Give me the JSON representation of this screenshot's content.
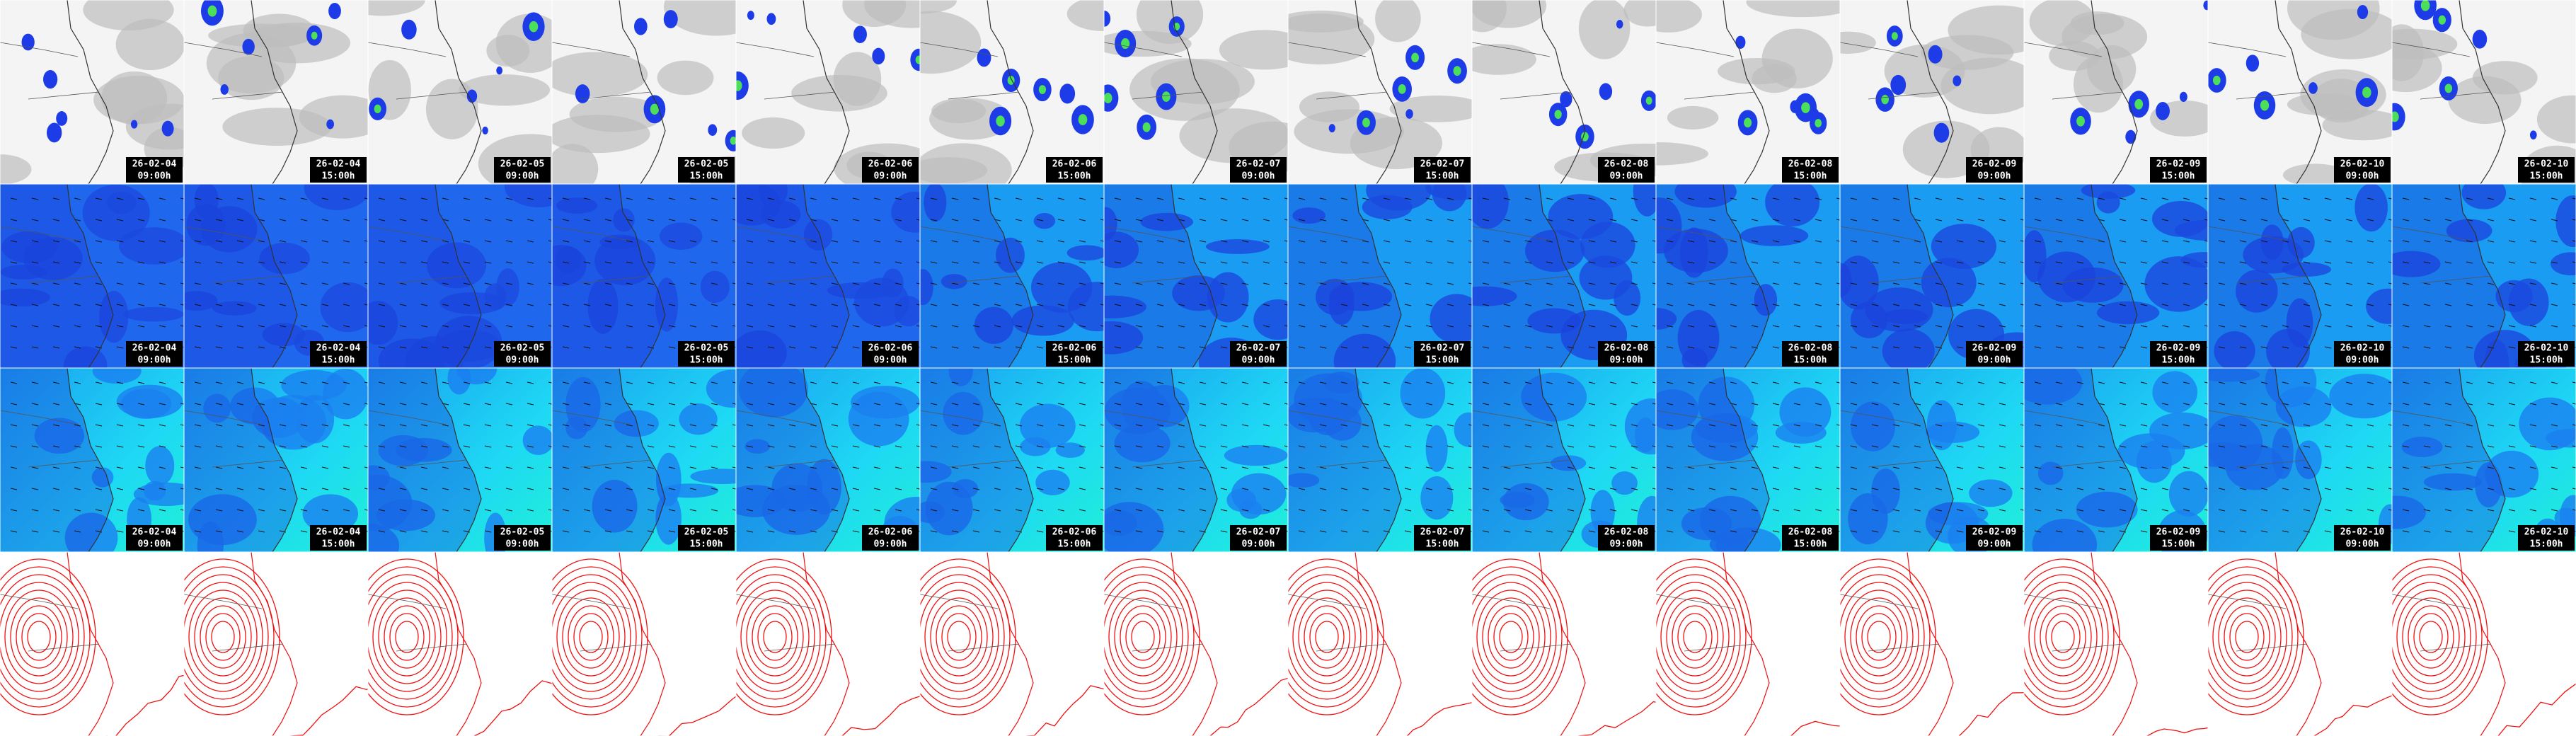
{
  "columns": [
    {
      "date": "26-02-04",
      "time": "09:00h"
    },
    {
      "date": "26-02-04",
      "time": "15:00h"
    },
    {
      "date": "26-02-05",
      "time": "09:00h"
    },
    {
      "date": "26-02-05",
      "time": "15:00h"
    },
    {
      "date": "26-02-06",
      "time": "09:00h"
    },
    {
      "date": "26-02-06",
      "time": "15:00h"
    },
    {
      "date": "26-02-07",
      "time": "09:00h"
    },
    {
      "date": "26-02-07",
      "time": "15:00h"
    },
    {
      "date": "26-02-08",
      "time": "09:00h"
    },
    {
      "date": "26-02-08",
      "time": "15:00h"
    },
    {
      "date": "26-02-09",
      "time": "09:00h"
    },
    {
      "date": "26-02-09",
      "time": "15:00h"
    },
    {
      "date": "26-02-10",
      "time": "09:00h"
    },
    {
      "date": "26-02-10",
      "time": "15:00h"
    }
  ]
}
